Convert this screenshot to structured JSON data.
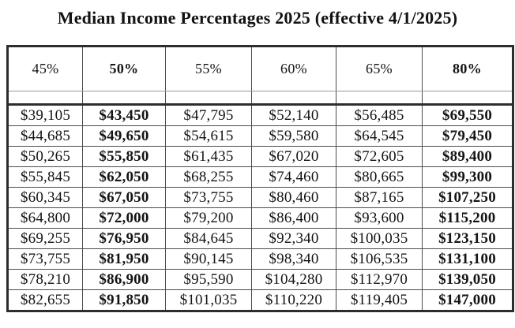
{
  "page": {
    "title": "Median Income Percentages 2025 (effective 4/1/2025)"
  },
  "table": {
    "columns": [
      {
        "label": "45%",
        "bold": false
      },
      {
        "label": "50%",
        "bold": true
      },
      {
        "label": "55%",
        "bold": false
      },
      {
        "label": "60%",
        "bold": false
      },
      {
        "label": "65%",
        "bold": false
      },
      {
        "label": "80%",
        "bold": true
      }
    ],
    "rows": [
      [
        "$39,105",
        "$43,450",
        "$47,795",
        "$52,140",
        "$56,485",
        "$69,550"
      ],
      [
        "$44,685",
        "$49,650",
        "$54,615",
        "$59,580",
        "$64,545",
        "$79,450"
      ],
      [
        "$50,265",
        "$55,850",
        "$61,435",
        "$67,020",
        "$72,605",
        "$89,400"
      ],
      [
        "$55,845",
        "$62,050",
        "$68,255",
        "$74,460",
        "$80,665",
        "$99,300"
      ],
      [
        "$60,345",
        "$67,050",
        "$73,755",
        "$80,460",
        "$87,165",
        "$107,250"
      ],
      [
        "$64,800",
        "$72,000",
        "$79,200",
        "$86,400",
        "$93,600",
        "$115,200"
      ],
      [
        "$69,255",
        "$76,950",
        "$84,645",
        "$92,340",
        "$100,035",
        "$123,150"
      ],
      [
        "$73,755",
        "$81,950",
        "$90,145",
        "$98,340",
        "$106,535",
        "$131,100"
      ],
      [
        "$78,210",
        "$86,900",
        "$95,590",
        "$104,280",
        "$112,970",
        "$139,050"
      ],
      [
        "$82,655",
        "$91,850",
        "$101,035",
        "$110,220",
        "$119,405",
        "$147,000"
      ]
    ]
  }
}
